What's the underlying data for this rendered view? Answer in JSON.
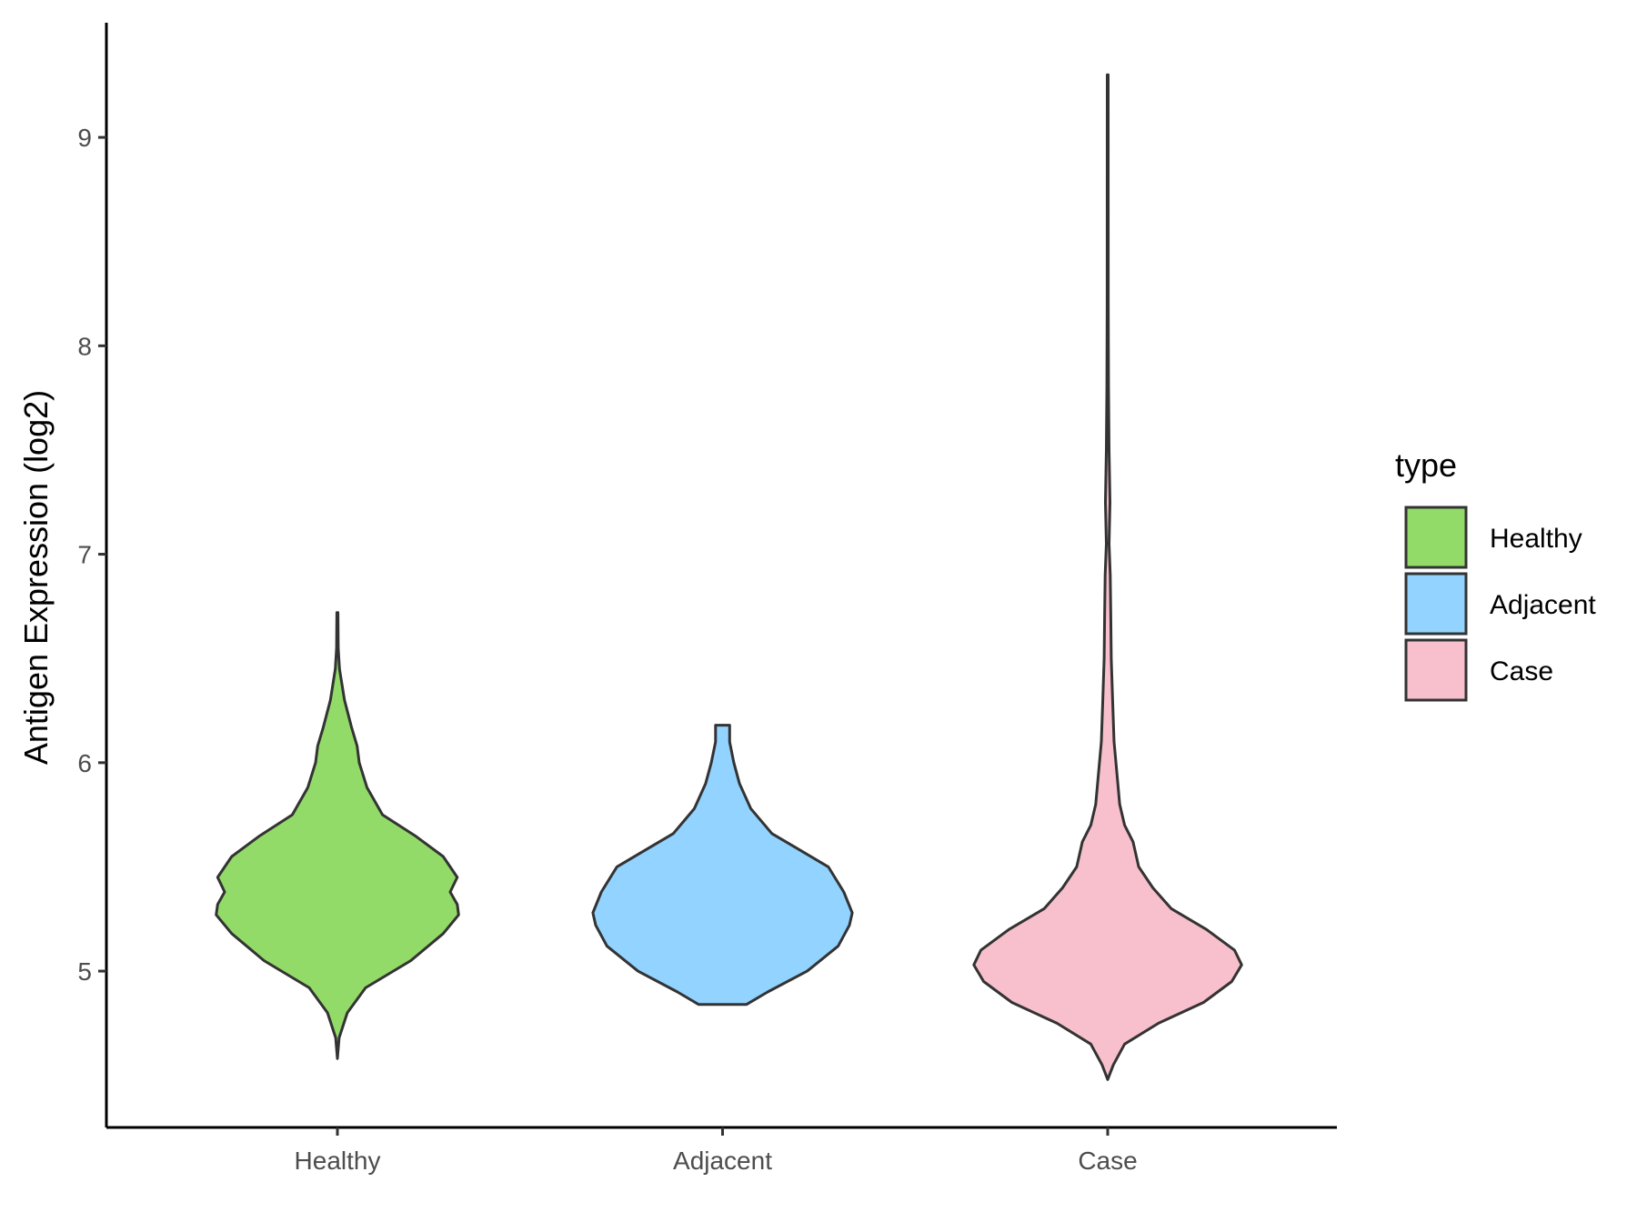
{
  "chart_data": {
    "type": "violin",
    "ylabel": "Antigen Expression (log2)",
    "xlabel": "",
    "ylim": [
      4.25,
      9.55
    ],
    "yticks": [
      5,
      6,
      7,
      8,
      9
    ],
    "categories": [
      "Healthy",
      "Adjacent",
      "Case"
    ],
    "legend": {
      "title": "type",
      "placement": "right",
      "entries": [
        {
          "label": "Healthy",
          "color": "#93DB69"
        },
        {
          "label": "Adjacent",
          "color": "#92D3FF"
        },
        {
          "label": "Case",
          "color": "#F7C0CC"
        }
      ]
    },
    "outline_color": "#333333",
    "series": [
      {
        "name": "Healthy",
        "color": "#93DB69",
        "density": [
          [
            4.58,
            0.0
          ],
          [
            4.68,
            0.012
          ],
          [
            4.8,
            0.07
          ],
          [
            4.92,
            0.2
          ],
          [
            5.05,
            0.52
          ],
          [
            5.18,
            0.75
          ],
          [
            5.27,
            0.86
          ],
          [
            5.32,
            0.85
          ],
          [
            5.38,
            0.8
          ],
          [
            5.45,
            0.85
          ],
          [
            5.55,
            0.75
          ],
          [
            5.65,
            0.55
          ],
          [
            5.75,
            0.32
          ],
          [
            5.88,
            0.21
          ],
          [
            6.0,
            0.155
          ],
          [
            6.08,
            0.14
          ],
          [
            6.17,
            0.1
          ],
          [
            6.3,
            0.05
          ],
          [
            6.45,
            0.015
          ],
          [
            6.55,
            0.006
          ],
          [
            6.72,
            0.004
          ]
        ]
      },
      {
        "name": "Adjacent",
        "color": "#92D3FF",
        "density": [
          [
            4.84,
            0.17
          ],
          [
            4.9,
            0.32
          ],
          [
            5.0,
            0.6
          ],
          [
            5.12,
            0.82
          ],
          [
            5.22,
            0.9
          ],
          [
            5.28,
            0.92
          ],
          [
            5.38,
            0.86
          ],
          [
            5.5,
            0.75
          ],
          [
            5.58,
            0.55
          ],
          [
            5.66,
            0.35
          ],
          [
            5.78,
            0.2
          ],
          [
            5.9,
            0.12
          ],
          [
            6.0,
            0.08
          ],
          [
            6.1,
            0.05
          ],
          [
            6.18,
            0.05
          ]
        ]
      },
      {
        "name": "Case",
        "color": "#F7C0CC",
        "density": [
          [
            4.48,
            0.0
          ],
          [
            4.55,
            0.04
          ],
          [
            4.65,
            0.12
          ],
          [
            4.75,
            0.36
          ],
          [
            4.85,
            0.68
          ],
          [
            4.95,
            0.88
          ],
          [
            5.03,
            0.95
          ],
          [
            5.1,
            0.9
          ],
          [
            5.2,
            0.7
          ],
          [
            5.3,
            0.45
          ],
          [
            5.4,
            0.32
          ],
          [
            5.5,
            0.22
          ],
          [
            5.62,
            0.18
          ],
          [
            5.7,
            0.12
          ],
          [
            5.8,
            0.085
          ],
          [
            5.95,
            0.065
          ],
          [
            6.1,
            0.045
          ],
          [
            6.3,
            0.035
          ],
          [
            6.5,
            0.025
          ],
          [
            6.7,
            0.022
          ],
          [
            6.9,
            0.018
          ],
          [
            7.05,
            0.01
          ],
          [
            7.25,
            0.016
          ],
          [
            7.5,
            0.01
          ],
          [
            7.8,
            0.006
          ],
          [
            8.2,
            0.004
          ],
          [
            9.3,
            0.003
          ]
        ]
      }
    ]
  }
}
